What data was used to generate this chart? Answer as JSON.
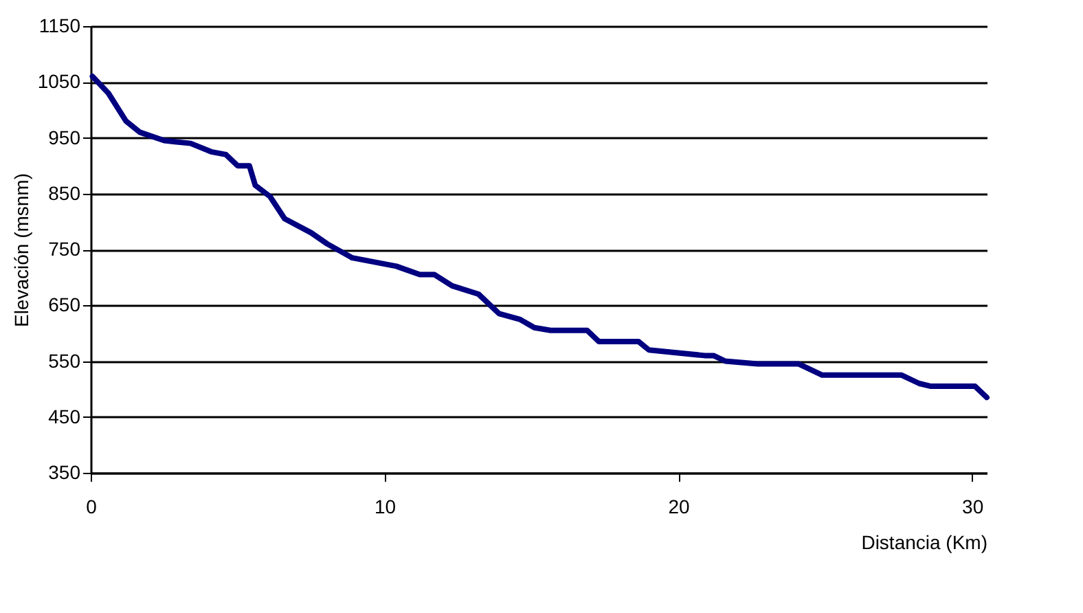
{
  "chart_data": {
    "type": "line",
    "xlabel": "Distancia (Km)",
    "ylabel": "Elevación (msnm)",
    "xlim": [
      0,
      30.5
    ],
    "xticks": [
      0,
      10,
      20,
      30
    ],
    "ylim": [
      350,
      1150
    ],
    "yticks": [
      350,
      450,
      550,
      650,
      750,
      850,
      950,
      1050,
      1150
    ],
    "grid": "y",
    "legend": false,
    "series": [
      {
        "color": "#000080",
        "x": [
          0.06,
          0.6,
          1.2,
          1.67,
          2.5,
          3.4,
          4.1,
          4.6,
          5.0,
          5.4,
          5.6,
          6.1,
          6.6,
          7.5,
          8.05,
          8.9,
          10.4,
          11.2,
          11.7,
          12.3,
          13.2,
          13.9,
          14.6,
          15.1,
          15.65,
          16.9,
          17.3,
          18.65,
          19.0,
          20.9,
          21.2,
          21.6,
          22.7,
          24.1,
          24.9,
          27.6,
          28.2,
          28.6,
          30.1,
          30.5
        ],
        "values": [
          1060,
          1030,
          980,
          960,
          945,
          940,
          925,
          920,
          900,
          900,
          865,
          845,
          805,
          780,
          760,
          735,
          720,
          705,
          705,
          685,
          670,
          635,
          625,
          610,
          605,
          605,
          585,
          585,
          570,
          560,
          560,
          550,
          545,
          545,
          525,
          525,
          510,
          505,
          505,
          485
        ]
      }
    ]
  }
}
